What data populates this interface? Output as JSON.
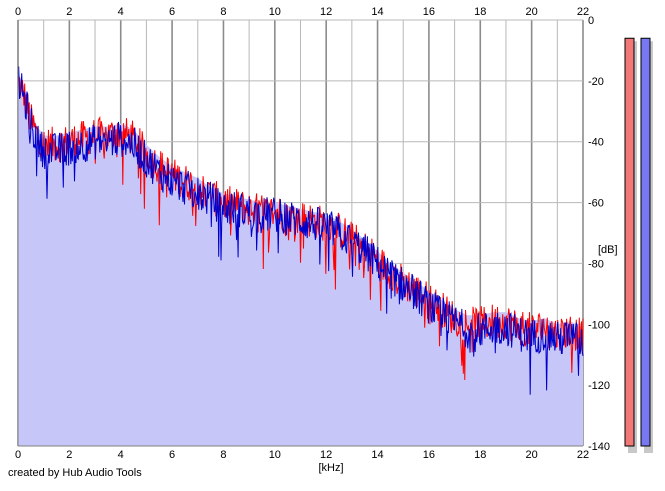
{
  "credit": "created by Hub Audio Tools",
  "colors": {
    "background": "#ffffff",
    "grid_major": "#8c8c8c",
    "grid_minor": "#b8b8b8",
    "fill": "#c6c6f8",
    "channel_left": "#ff0000",
    "channel_right": "#0000cc",
    "meter_left": "#f07878",
    "meter_right": "#7878f0"
  },
  "chart_data": {
    "type": "line",
    "xlabel": "[kHz]",
    "ylabel": "[dB]",
    "x_unit": "kHz",
    "y_unit": "dB",
    "xlim": [
      0,
      22
    ],
    "ylim": [
      -140,
      0
    ],
    "x_ticks": [
      0,
      2,
      4,
      6,
      8,
      10,
      12,
      14,
      16,
      18,
      20,
      22
    ],
    "y_ticks": [
      0,
      -20,
      -40,
      -60,
      -80,
      -100,
      -120,
      -140
    ],
    "x_tick_labels": [
      "0",
      "2",
      "4",
      "6",
      "8",
      "10",
      "12",
      "14",
      "16",
      "18",
      "20",
      "22"
    ],
    "y_tick_labels": [
      "0",
      "-20",
      "-40",
      "-60",
      "-80",
      "-100",
      "-120",
      "-140"
    ],
    "grid": true,
    "series": [
      {
        "channel": "left",
        "color": "#ff0000",
        "x": [
          0,
          0.25,
          0.5,
          0.75,
          1,
          1.5,
          2,
          2.5,
          3,
          3.5,
          4,
          4.5,
          5,
          5.5,
          6,
          6.5,
          7,
          7.5,
          8,
          8.5,
          9,
          9.5,
          10,
          10.5,
          11,
          11.5,
          12,
          12.5,
          13,
          13.5,
          14,
          14.5,
          15,
          15.5,
          16,
          16.5,
          17,
          17.5,
          18,
          18.5,
          19,
          19.5,
          20,
          20.5,
          21,
          21.5,
          22
        ],
        "values": [
          -20,
          -25,
          -33,
          -38,
          -41,
          -41,
          -40,
          -39,
          -38,
          -38,
          -37,
          -39,
          -44,
          -48,
          -51,
          -53,
          -55,
          -58,
          -60,
          -61,
          -62,
          -63,
          -63,
          -64,
          -65,
          -66,
          -67,
          -69,
          -72,
          -75,
          -79,
          -83,
          -86,
          -89,
          -92,
          -95,
          -98,
          -100,
          -100,
          -99,
          -99,
          -101,
          -102,
          -101,
          -103,
          -102,
          -104
        ]
      },
      {
        "channel": "right",
        "color": "#0000cc",
        "x": [
          0,
          0.25,
          0.5,
          0.75,
          1,
          1.5,
          2,
          2.5,
          3,
          3.5,
          4,
          4.5,
          5,
          5.5,
          6,
          6.5,
          7,
          7.5,
          8,
          8.5,
          9,
          9.5,
          10,
          10.5,
          11,
          11.5,
          12,
          12.5,
          13,
          13.5,
          14,
          14.5,
          15,
          15.5,
          16,
          16.5,
          17,
          17.5,
          18,
          18.5,
          19,
          19.5,
          20,
          20.5,
          21,
          21.5,
          22
        ],
        "values": [
          -20,
          -26,
          -34,
          -40,
          -43,
          -43,
          -42,
          -41,
          -40,
          -40,
          -39,
          -41,
          -46,
          -50,
          -53,
          -55,
          -57,
          -59,
          -62,
          -62,
          -63,
          -64,
          -64,
          -65,
          -66,
          -67,
          -68,
          -70,
          -73,
          -76,
          -80,
          -84,
          -87,
          -90,
          -94,
          -97,
          -99,
          -102,
          -102,
          -101,
          -101,
          -103,
          -104,
          -103,
          -105,
          -104,
          -106
        ]
      }
    ],
    "meters": [
      {
        "channel": "left",
        "level_db": -6,
        "color": "#f07878"
      },
      {
        "channel": "right",
        "level_db": -6,
        "color": "#7878f0"
      }
    ]
  }
}
